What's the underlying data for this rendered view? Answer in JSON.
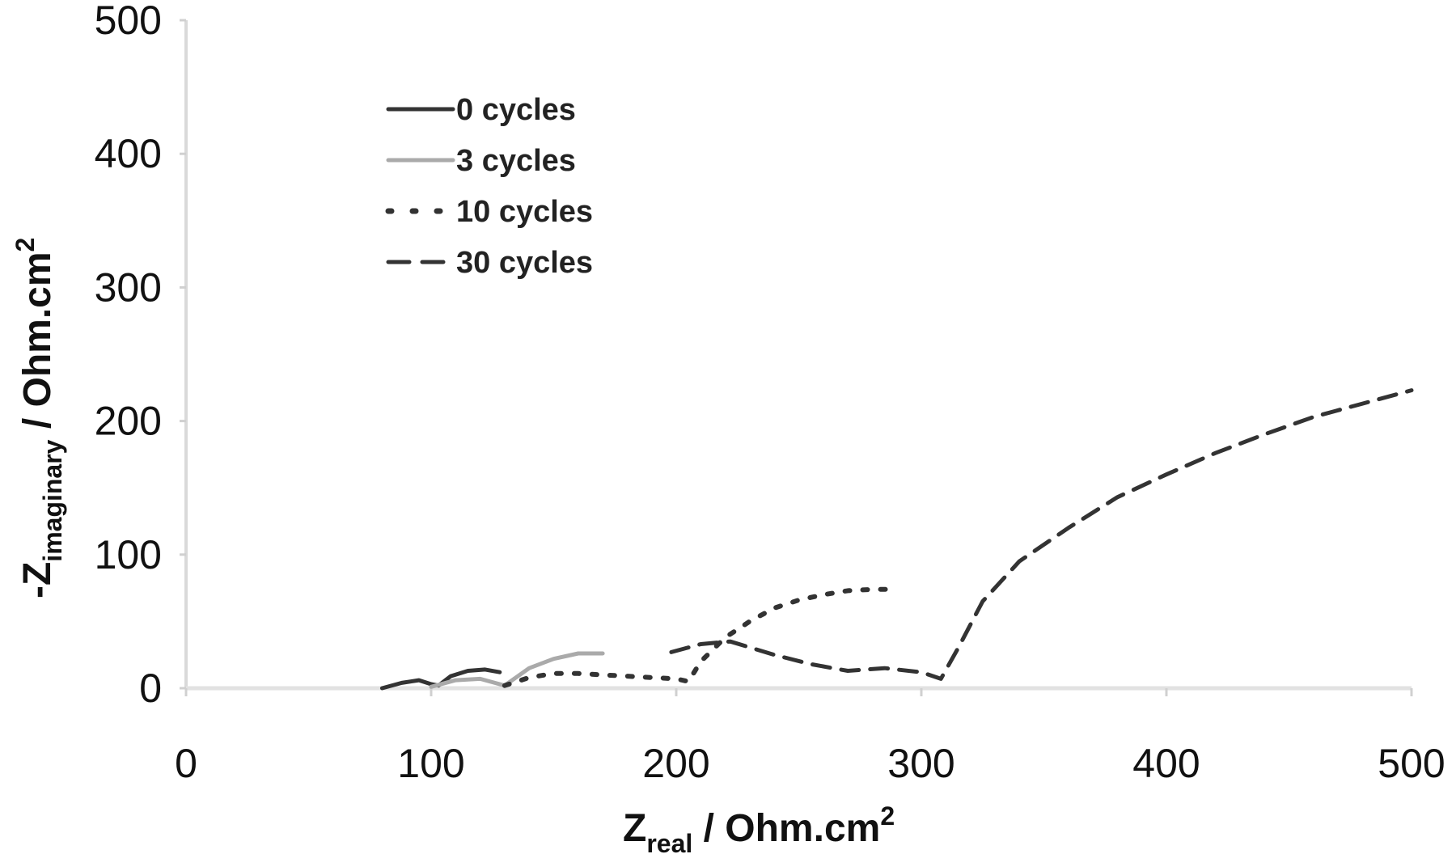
{
  "chart_data": {
    "type": "line",
    "title": "",
    "xlabel": "Z_real / Ohm.cm^2",
    "ylabel": "-Z_imaginary / Ohm.cm^2",
    "xlim": [
      0,
      500
    ],
    "ylim": [
      0,
      500
    ],
    "xticks": [
      0,
      100,
      200,
      300,
      400,
      500
    ],
    "yticks": [
      0,
      100,
      200,
      300,
      400,
      500
    ],
    "grid": false,
    "legend_position": "upper-left",
    "series": [
      {
        "name": "0 cycles",
        "style": "solid",
        "color": "#333333",
        "x": [
          80,
          88,
          95,
          100,
          103,
          108,
          115,
          122,
          128
        ],
        "y": [
          0,
          4,
          6,
          3,
          2,
          9,
          13,
          14,
          12
        ]
      },
      {
        "name": "3 cycles",
        "style": "solid",
        "color": "#aaaaaa",
        "x": [
          100,
          110,
          120,
          126,
          130,
          140,
          150,
          160,
          170
        ],
        "y": [
          1,
          6,
          7,
          4,
          2,
          15,
          22,
          26,
          26
        ]
      },
      {
        "name": "10 cycles",
        "style": "dotted",
        "color": "#333333",
        "x": [
          130,
          140,
          150,
          160,
          170,
          180,
          190,
          200,
          205,
          210,
          220,
          230,
          240,
          250,
          260,
          270,
          280,
          290
        ],
        "y": [
          2,
          8,
          11,
          11,
          10,
          9,
          8,
          7,
          5,
          20,
          38,
          50,
          60,
          66,
          70,
          73,
          74,
          74
        ]
      },
      {
        "name": "30 cycles",
        "style": "dashed",
        "color": "#333333",
        "x": [
          198,
          210,
          222,
          240,
          255,
          270,
          285,
          300,
          308,
          315,
          325,
          340,
          360,
          380,
          400,
          420,
          440,
          460,
          480,
          500
        ],
        "y": [
          27,
          33,
          35,
          25,
          18,
          13,
          15,
          12,
          7,
          30,
          65,
          95,
          120,
          143,
          160,
          176,
          190,
          203,
          213,
          223
        ]
      }
    ]
  },
  "legend": {
    "items": [
      "0 cycles",
      "3 cycles",
      "10 cycles",
      "30 cycles"
    ]
  },
  "axes": {
    "x_label_main": "Z",
    "x_label_sub": "real",
    "x_label_rest": " / Ohm.cm",
    "x_label_sup": "2",
    "y_label_main": "-Z",
    "y_label_sub": "imaginary",
    "y_label_rest": " / Ohm.cm",
    "y_label_sup": "2"
  }
}
